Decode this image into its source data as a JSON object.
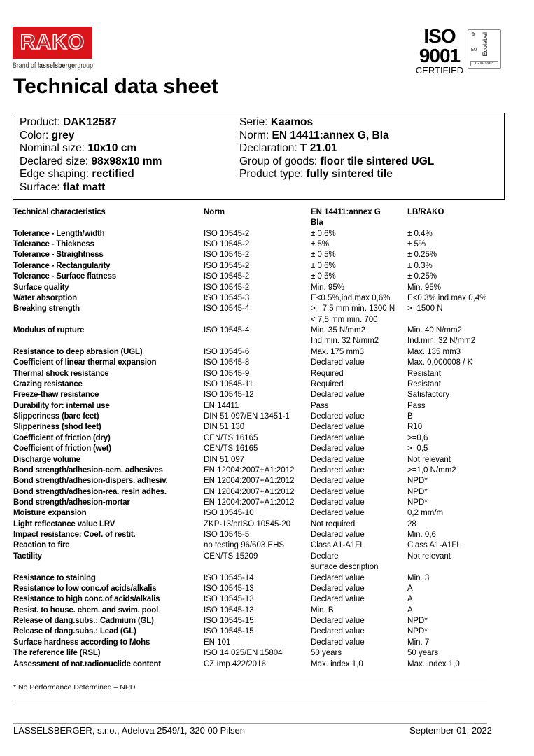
{
  "logo": {
    "brand": "RAKO",
    "tagline_prefix": "Brand of ",
    "tagline_brand": "lasselsberger",
    "tagline_suffix": "group",
    "brand_color": "#d9141b"
  },
  "cert": {
    "iso_line1": "ISO",
    "iso_line2": "9001",
    "iso_line3": "CERTIFIED",
    "ecolabel": "Ecolabel",
    "ecolabel_eu": "EU",
    "ecolabel_code": "CZ/021/003"
  },
  "title": "Technical data sheet",
  "product": {
    "left": [
      {
        "label": "Product: ",
        "value": "DAK12587"
      },
      {
        "label": "Color: ",
        "value": "grey"
      },
      {
        "label": "Nominal size: ",
        "value": "10x10 cm"
      },
      {
        "label": "Declared size: ",
        "value": "98x98x10 mm"
      },
      {
        "label": "Edge shaping:  ",
        "value": "rectified"
      },
      {
        "label": "Surface: ",
        "value": "flat matt"
      }
    ],
    "right": [
      {
        "label": "Serie: ",
        "value": "Kaamos"
      },
      {
        "label": "Norm: ",
        "value": "EN 14411:annex G, BIa"
      },
      {
        "label": "Declaration: ",
        "value": "T 21.01"
      },
      {
        "label": "Group of goods: ",
        "value": "floor tile sintered UGL"
      },
      {
        "label": "Product type: ",
        "value": "fully sintered tile"
      }
    ]
  },
  "table": {
    "headers": [
      "Technical characteristics",
      "Norm",
      "EN 14411:annex G",
      "LB/RAKO"
    ],
    "header_cont": "BIa",
    "rows": [
      [
        "Tolerance - Length/width",
        "ISO 10545-2",
        "± 0.6%",
        "± 0.4%"
      ],
      [
        "Tolerance - Thickness",
        "ISO 10545-2",
        "± 5%",
        "± 5%"
      ],
      [
        "Tolerance - Straightness",
        "ISO 10545-2",
        "± 0.5%",
        "± 0.25%"
      ],
      [
        "Tolerance - Rectangularity",
        "ISO 10545-2",
        "± 0.6%",
        "± 0.3%"
      ],
      [
        "Tolerance - Surface flatness",
        "ISO 10545-2",
        "± 0.5%",
        "± 0.25%"
      ],
      [
        "Surface quality",
        "ISO 10545-2",
        "Min. 95%",
        "Min. 95%"
      ],
      [
        "Water absorption",
        "ISO 10545-3",
        "E<0.5%,ind.max 0,6%",
        "E<0.3%,ind.max 0,4%"
      ],
      [
        "Breaking strength",
        "ISO 10545-4",
        ">= 7,5 mm min. 1300 N",
        ">=1500 N",
        "< 7,5 mm min. 700",
        ""
      ],
      [
        "Modulus of rupture",
        "ISO 10545-4",
        "Min. 35 N/mm2",
        "Min. 40 N/mm2",
        "Ind.min. 32 N/mm2",
        "Ind.min. 32 N/mm2"
      ],
      [
        "Resistance to deep abrasion (UGL)",
        "ISO 10545-6",
        "Max. 175 mm3",
        "Max. 135 mm3"
      ],
      [
        "Coefficient of linear thermal expansion",
        "ISO 10545-8",
        "Declared value",
        "Max. 0,000008 / K"
      ],
      [
        "Thermal shock resistance",
        "ISO 10545-9",
        "Required",
        "Resistant"
      ],
      [
        "Crazing resistance",
        "ISO 10545-11",
        "Required",
        "Resistant"
      ],
      [
        "Freeze-thaw resistance",
        "ISO 10545-12",
        "Declared value",
        "Satisfactory"
      ],
      [
        "Durability for: internal use",
        "EN 14411",
        "Pass",
        "Pass"
      ],
      [
        "Slipperiness (bare feet)",
        "DIN 51 097/EN 13451-1",
        "Declared value",
        "B"
      ],
      [
        "Slipperiness (shod feet)",
        "DIN 51 130",
        "Declared value",
        "R10"
      ],
      [
        "Coefficient of friction (dry)",
        "CEN/TS 16165",
        "Declared value",
        ">=0,6"
      ],
      [
        "Coefficient of friction (wet)",
        "CEN/TS 16165",
        "Declared value",
        ">=0,5"
      ],
      [
        "Discharge volume",
        "DIN 51 097",
        "Declared value",
        "Not relevant"
      ],
      [
        "Bond strength/adhesion-cem. adhesives",
        "EN 12004:2007+A1:2012",
        "Declared value",
        ">=1,0 N/mm2"
      ],
      [
        "Bond strength/adhesion-dispers. adhesiv.",
        "EN 12004:2007+A1:2012",
        "Declared value",
        "NPD*"
      ],
      [
        "Bond strength/adhesion-rea. resin adhes.",
        "EN 12004:2007+A1:2012",
        "Declared value",
        "NPD*"
      ],
      [
        "Bond strength/adhesion-mortar",
        "EN 12004:2007+A1:2012",
        "Declared value",
        "NPD*"
      ],
      [
        "Moisture expansion",
        "ISO 10545-10",
        "Declared value",
        "0,2 mm/m"
      ],
      [
        "Light reflectance value LRV",
        "ZKP-13/prISO 10545-20",
        "Not required",
        "28"
      ],
      [
        "Impact resistance: Coef. of restit.",
        "ISO 10545-5",
        "Declared value",
        "Min. 0,6"
      ],
      [
        "Reaction to fire",
        "no testing 96/603 EHS",
        "Class A1-A1FL",
        "Class A1-A1FL"
      ],
      [
        "Tactility",
        "CEN/TS 15209",
        "Declare",
        "Not relevant",
        "surface description",
        ""
      ],
      [
        "Resistance to staining",
        "ISO 10545-14",
        "Declared value",
        "Min. 3"
      ],
      [
        "Resistance to low conc.of acids/alkalis",
        "ISO 10545-13",
        "Declared value",
        "A"
      ],
      [
        "Resistance to high conc.of acids/alkalis",
        "ISO 10545-13",
        "Declared value",
        "A"
      ],
      [
        "Resist. to house. chem. and swim. pool",
        "ISO 10545-13",
        "Min. B",
        "A"
      ],
      [
        "Release of dang.subs.: Cadmium (GL)",
        "ISO 10545-15",
        "Declared value",
        "NPD*"
      ],
      [
        "Release of dang.subs.: Lead (GL)",
        "ISO 10545-15",
        "Declared value",
        "NPD*"
      ],
      [
        "Surface hardness according to Mohs",
        "EN 101",
        "Declared value",
        "Min. 7"
      ],
      [
        "The reference life (RSL)",
        "ISO 14 025/EN 15804",
        "50 years",
        "50 years"
      ],
      [
        "Assessment of nat.radionuclide content",
        "CZ Imp.422/2016",
        "Max. index 1,0",
        "Max. index 1,0"
      ]
    ]
  },
  "footnote": "* No Performance Determined – NPD",
  "footer": {
    "company": "LASSELSBERGER, s.r.o., Adelova 2549/1, 320 00 Pilsen",
    "date": "September 01, 2022"
  }
}
